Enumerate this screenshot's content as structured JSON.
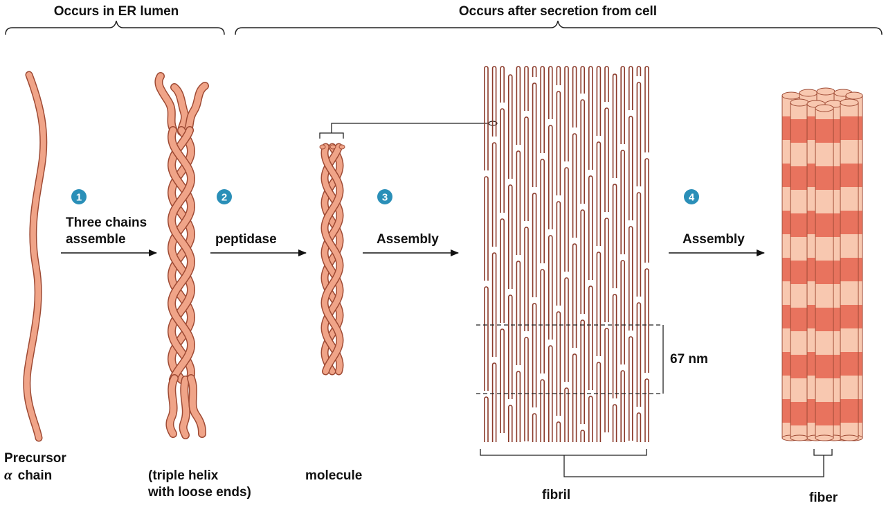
{
  "headers": {
    "er_lumen": "Occurs in ER lumen",
    "after_secretion": "Occurs after secretion from cell"
  },
  "steps": [
    {
      "number": "1",
      "lines": [
        "Three chains",
        "assemble"
      ]
    },
    {
      "number": "2",
      "lines": [
        "peptidase"
      ]
    },
    {
      "number": "3",
      "lines": [
        "Assembly"
      ]
    },
    {
      "number": "4",
      "lines": [
        "Assembly"
      ]
    }
  ],
  "labels": {
    "precursor_line1": "Precursor",
    "precursor_greek": "α",
    "precursor_line2": "chain",
    "triple_line1": "(triple helix",
    "triple_line2": "with loose ends)",
    "molecule": "molecule",
    "fibril": "fibril",
    "fiber": "fiber",
    "spacing": "67 nm"
  },
  "colors": {
    "chain_fill": "#f0a488",
    "chain_outline": "#9e4a34",
    "step_badge": "#2a8fb8",
    "fibril_stroke": "#8b3a2a",
    "fiber_dark": "#e8735e",
    "fiber_light": "#f8c8b0"
  }
}
